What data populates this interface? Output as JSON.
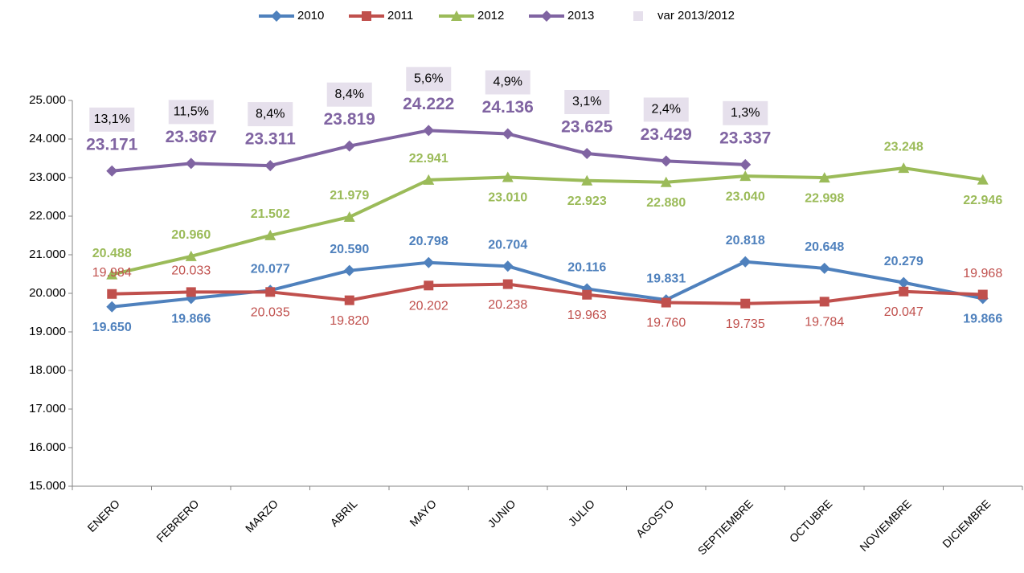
{
  "chart_data": {
    "type": "line",
    "categories": [
      "ENERO",
      "FEBRERO",
      "MARZO",
      "ABRIL",
      "MAYO",
      "JUNIO",
      "JULIO",
      "AGOSTO",
      "SEPTIEMBRE",
      "OCTUBRE",
      "NOVIEMBRE",
      "DICIEMBRE"
    ],
    "series": [
      {
        "name": "2010",
        "color": "#4f81bd",
        "marker": "diamond",
        "values": [
          19650,
          19866,
          20077,
          20590,
          20798,
          20704,
          20116,
          19831,
          20818,
          20648,
          20279,
          19866
        ],
        "value_labels": [
          "19.650",
          "19.866",
          "20.077",
          "20.590",
          "20.798",
          "20.704",
          "20.116",
          "19.831",
          "20.818",
          "20.648",
          "20.279",
          "19.866"
        ]
      },
      {
        "name": "2011",
        "color": "#c0504d",
        "marker": "square",
        "values": [
          19984,
          20033,
          20035,
          19820,
          20202,
          20238,
          19963,
          19760,
          19735,
          19784,
          20047,
          19968
        ],
        "value_labels": [
          "19.984",
          "20.033",
          "20.035",
          "19.820",
          "20.202",
          "20.238",
          "19.963",
          "19.760",
          "19.735",
          "19.784",
          "20.047",
          "19.968"
        ]
      },
      {
        "name": "2012",
        "color": "#9bbb59",
        "marker": "triangle",
        "values": [
          20488,
          20960,
          21502,
          21979,
          22941,
          23010,
          22923,
          22880,
          23040,
          22998,
          23248,
          22946
        ],
        "value_labels": [
          "20.488",
          "20.960",
          "21.502",
          "21.979",
          "22.941",
          "23.010",
          "22.923",
          "22.880",
          "23.040",
          "22.998",
          "23.248",
          "22.946"
        ]
      },
      {
        "name": "2013",
        "color": "#8064a2",
        "marker": "diamond",
        "values": [
          23171,
          23367,
          23311,
          23819,
          24222,
          24136,
          23625,
          23429,
          23337,
          null,
          null,
          null
        ],
        "value_labels": [
          "23.171",
          "23.367",
          "23.311",
          "23.819",
          "24.222",
          "24.136",
          "23.625",
          "23.429",
          "23.337",
          null,
          null,
          null
        ]
      },
      {
        "name": "var 2013/2012",
        "color": "#e6e0ec",
        "values": [
          13.1,
          11.5,
          8.4,
          8.4,
          5.6,
          4.9,
          3.1,
          2.4,
          1.3,
          null,
          null,
          null
        ],
        "value_labels": [
          "13,1%",
          "11,5%",
          "8,4%",
          "8,4%",
          "5,6%",
          "4,9%",
          "3,1%",
          "2,4%",
          "1,3%",
          null,
          null,
          null
        ]
      }
    ],
    "ylim": [
      15000,
      25000
    ],
    "yticks": [
      {
        "value": 15000,
        "label": "15.000"
      },
      {
        "value": 16000,
        "label": "16.000"
      },
      {
        "value": 17000,
        "label": "17.000"
      },
      {
        "value": 18000,
        "label": "18.000"
      },
      {
        "value": 19000,
        "label": "19.000"
      },
      {
        "value": 20000,
        "label": "20.000"
      },
      {
        "value": 21000,
        "label": "21.000"
      },
      {
        "value": 22000,
        "label": "22.000"
      },
      {
        "value": 23000,
        "label": "23.000"
      },
      {
        "value": 24000,
        "label": "24.000"
      },
      {
        "value": 25000,
        "label": "25.000"
      }
    ],
    "legend": "top"
  }
}
